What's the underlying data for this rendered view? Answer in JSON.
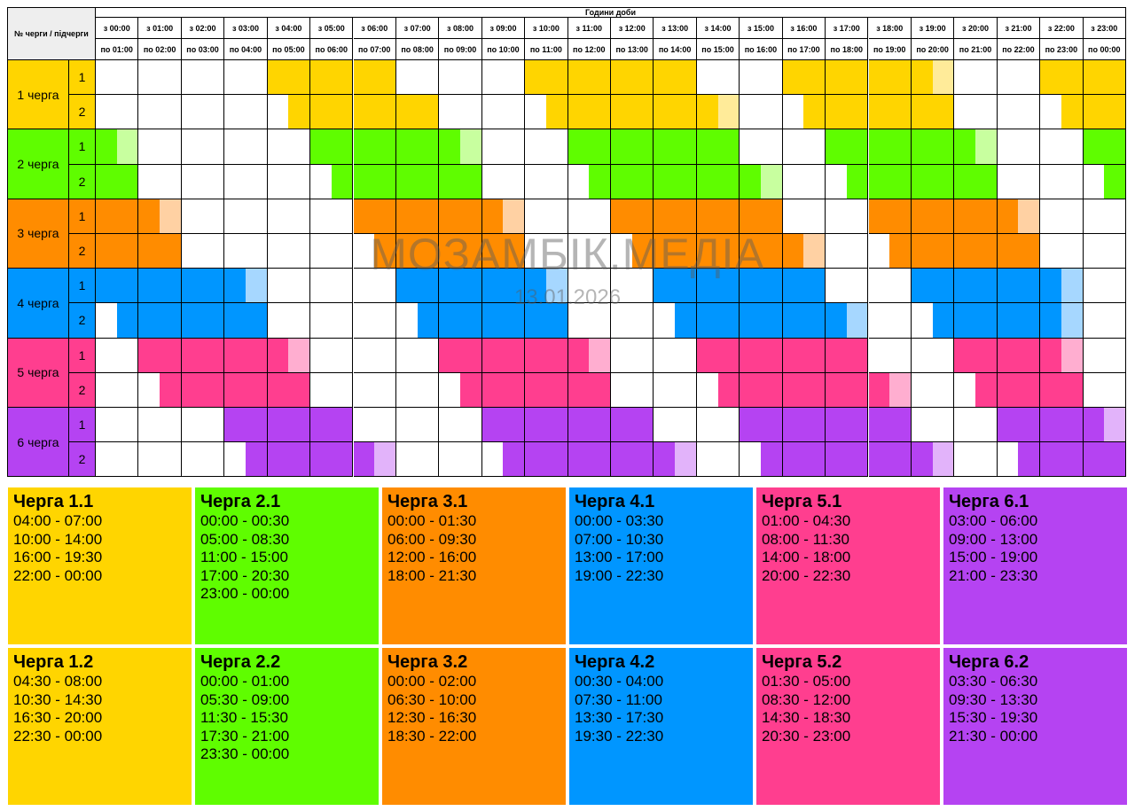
{
  "header": {
    "corner_label": "№ черги / підчерги",
    "title": "Години доби",
    "from_labels": [
      "з 00:00",
      "з 01:00",
      "з 02:00",
      "з 03:00",
      "з 04:00",
      "з 05:00",
      "з 06:00",
      "з 07:00",
      "з 08:00",
      "з 09:00",
      "з 10:00",
      "з 11:00",
      "з 12:00",
      "з 13:00",
      "з 14:00",
      "з 15:00",
      "з 16:00",
      "з 17:00",
      "з 18:00",
      "з 19:00",
      "з 20:00",
      "з 21:00",
      "з 22:00",
      "з 23:00"
    ],
    "to_labels": [
      "по 01:00",
      "по 02:00",
      "по 03:00",
      "по 04:00",
      "по 05:00",
      "по 06:00",
      "по 07:00",
      "по 08:00",
      "по 09:00",
      "по 10:00",
      "по 11:00",
      "по 12:00",
      "по 13:00",
      "по 14:00",
      "по 15:00",
      "по 16:00",
      "по 17:00",
      "по 18:00",
      "по 19:00",
      "по 20:00",
      "по 21:00",
      "по 22:00",
      "по 23:00",
      "по 00:00"
    ]
  },
  "queues": [
    {
      "label": "1 черга",
      "color": "#ffd500",
      "light": "#ffeb99",
      "subqueues": [
        {
          "label": "1",
          "schedule": "0000000011111111222222221111111122222222111111112222222222222222222222221111111111111111"
        },
        {
          "label": "2",
          "schedule": "000000000111111112222222211111111222222221111111122222222"
        }
      ]
    },
    {
      "label": "2 черга",
      "color": "#5ffd00",
      "light": "#c8ff9f",
      "subqueues": [
        {
          "label": "1",
          "schedule": "1"
        },
        {
          "label": "2",
          "schedule": "1"
        }
      ]
    },
    {
      "label": "3 черга",
      "color": "#ff8c00",
      "light": "#ffd1a3",
      "subqueues": [
        {
          "label": "1",
          "schedule": "1"
        },
        {
          "label": "2",
          "schedule": "1"
        }
      ]
    },
    {
      "label": "4 черга",
      "color": "#0096ff",
      "light": "#a6d7ff",
      "subqueues": [
        {
          "label": "1",
          "schedule": "1"
        },
        {
          "label": "2",
          "schedule": "1"
        }
      ]
    },
    {
      "label": "5 черга",
      "color": "#ff3e8f",
      "light": "#ffaed0",
      "subqueues": [
        {
          "label": "1",
          "schedule": "1"
        },
        {
          "label": "2",
          "schedule": "1"
        }
      ]
    },
    {
      "label": "6 черга",
      "color": "#b543f2",
      "light": "#e2b3fa",
      "subqueues": [
        {
          "label": "1",
          "schedule": "1"
        },
        {
          "label": "2",
          "schedule": "1"
        }
      ]
    }
  ],
  "outages": {
    "1.1": [
      [
        4,
        7
      ],
      [
        10,
        14
      ],
      [
        16,
        19.5
      ],
      [
        22,
        24
      ]
    ],
    "1.2": [
      [
        4.5,
        8
      ],
      [
        10.5,
        14.5
      ],
      [
        16.5,
        20
      ],
      [
        22.5,
        24
      ]
    ],
    "2.1": [
      [
        0,
        0.5
      ],
      [
        5,
        8.5
      ],
      [
        11,
        15
      ],
      [
        17,
        20.5
      ],
      [
        23,
        24
      ]
    ],
    "2.2": [
      [
        0,
        1
      ],
      [
        5.5,
        9
      ],
      [
        11.5,
        15.5
      ],
      [
        17.5,
        21
      ],
      [
        23.5,
        24
      ]
    ],
    "3.1": [
      [
        0,
        1.5
      ],
      [
        6,
        9.5
      ],
      [
        12,
        16
      ],
      [
        18,
        21.5
      ]
    ],
    "3.2": [
      [
        0,
        2
      ],
      [
        6.5,
        10
      ],
      [
        12.5,
        16.5
      ],
      [
        18.5,
        22
      ]
    ],
    "4.1": [
      [
        0,
        3.5
      ],
      [
        7,
        10.5
      ],
      [
        13,
        17
      ],
      [
        19,
        22.5
      ]
    ],
    "4.2": [
      [
        0.5,
        4
      ],
      [
        7.5,
        11
      ],
      [
        13.5,
        17.5
      ],
      [
        19.5,
        22.5
      ]
    ],
    "5.1": [
      [
        1,
        4.5
      ],
      [
        8,
        11.5
      ],
      [
        14,
        18
      ],
      [
        20,
        22.5
      ]
    ],
    "5.2": [
      [
        1.5,
        5
      ],
      [
        8.5,
        12
      ],
      [
        14.5,
        18.5
      ],
      [
        20.5,
        23
      ]
    ],
    "6.1": [
      [
        3,
        6
      ],
      [
        9,
        13
      ],
      [
        15,
        19
      ],
      [
        21,
        23.5
      ]
    ],
    "6.2": [
      [
        3.5,
        6.5
      ],
      [
        9.5,
        13.5
      ],
      [
        15.5,
        19.5
      ],
      [
        21.5,
        24
      ]
    ]
  },
  "watermark": {
    "title": "МОЗАМБІК.МЕДІА",
    "date": "13.01.2026"
  },
  "cards": [
    {
      "title": "Черга 1.1",
      "color": "#ffd500",
      "lines": [
        "04:00 - 07:00",
        "10:00 - 14:00",
        "16:00 - 19:30",
        "22:00 - 00:00"
      ]
    },
    {
      "title": "Черга 2.1",
      "color": "#5ffd00",
      "lines": [
        "00:00 - 00:30",
        "05:00 - 08:30",
        "11:00 - 15:00",
        "17:00 - 20:30",
        "23:00 - 00:00"
      ]
    },
    {
      "title": "Черга 3.1",
      "color": "#ff8c00",
      "lines": [
        "00:00 - 01:30",
        "06:00 - 09:30",
        "12:00 - 16:00",
        "18:00 - 21:30"
      ]
    },
    {
      "title": "Черга 4.1",
      "color": "#0096ff",
      "lines": [
        "00:00 - 03:30",
        "07:00 - 10:30",
        "13:00 - 17:00",
        "19:00 - 22:30"
      ]
    },
    {
      "title": "Черга 5.1",
      "color": "#ff3e8f",
      "lines": [
        "01:00 - 04:30",
        "08:00 - 11:30",
        "14:00 - 18:00",
        "20:00 - 22:30"
      ]
    },
    {
      "title": "Черга 6.1",
      "color": "#b543f2",
      "lines": [
        "03:00 - 06:00",
        "09:00 - 13:00",
        "15:00 - 19:00",
        "21:00 - 23:30"
      ]
    },
    {
      "title": "Черга 1.2",
      "color": "#ffd500",
      "lines": [
        "04:30 - 08:00",
        "10:30 - 14:30",
        "16:30 - 20:00",
        "22:30 - 00:00"
      ]
    },
    {
      "title": "Черга 2.2",
      "color": "#5ffd00",
      "lines": [
        "00:00 - 01:00",
        "05:30 - 09:00",
        "11:30 - 15:30",
        "17:30 - 21:00",
        "23:30 - 00:00"
      ]
    },
    {
      "title": "Черга 3.2",
      "color": "#ff8c00",
      "lines": [
        "00:00 - 02:00",
        "06:30 - 10:00",
        "12:30 - 16:30",
        "18:30 - 22:00"
      ]
    },
    {
      "title": "Черга 4.2",
      "color": "#0096ff",
      "lines": [
        "00:30 - 04:00",
        "07:30 - 11:00",
        "13:30 - 17:30",
        "19:30 - 22:30"
      ]
    },
    {
      "title": "Черга 5.2",
      "color": "#ff3e8f",
      "lines": [
        "01:30 - 05:00",
        "08:30 - 12:00",
        "14:30 - 18:30",
        "20:30 - 23:00"
      ]
    },
    {
      "title": "Черга 6.2",
      "color": "#b543f2",
      "lines": [
        "03:30 - 06:30",
        "09:30 - 13:30",
        "15:30 - 19:30",
        "21:30 - 00:00"
      ]
    }
  ]
}
